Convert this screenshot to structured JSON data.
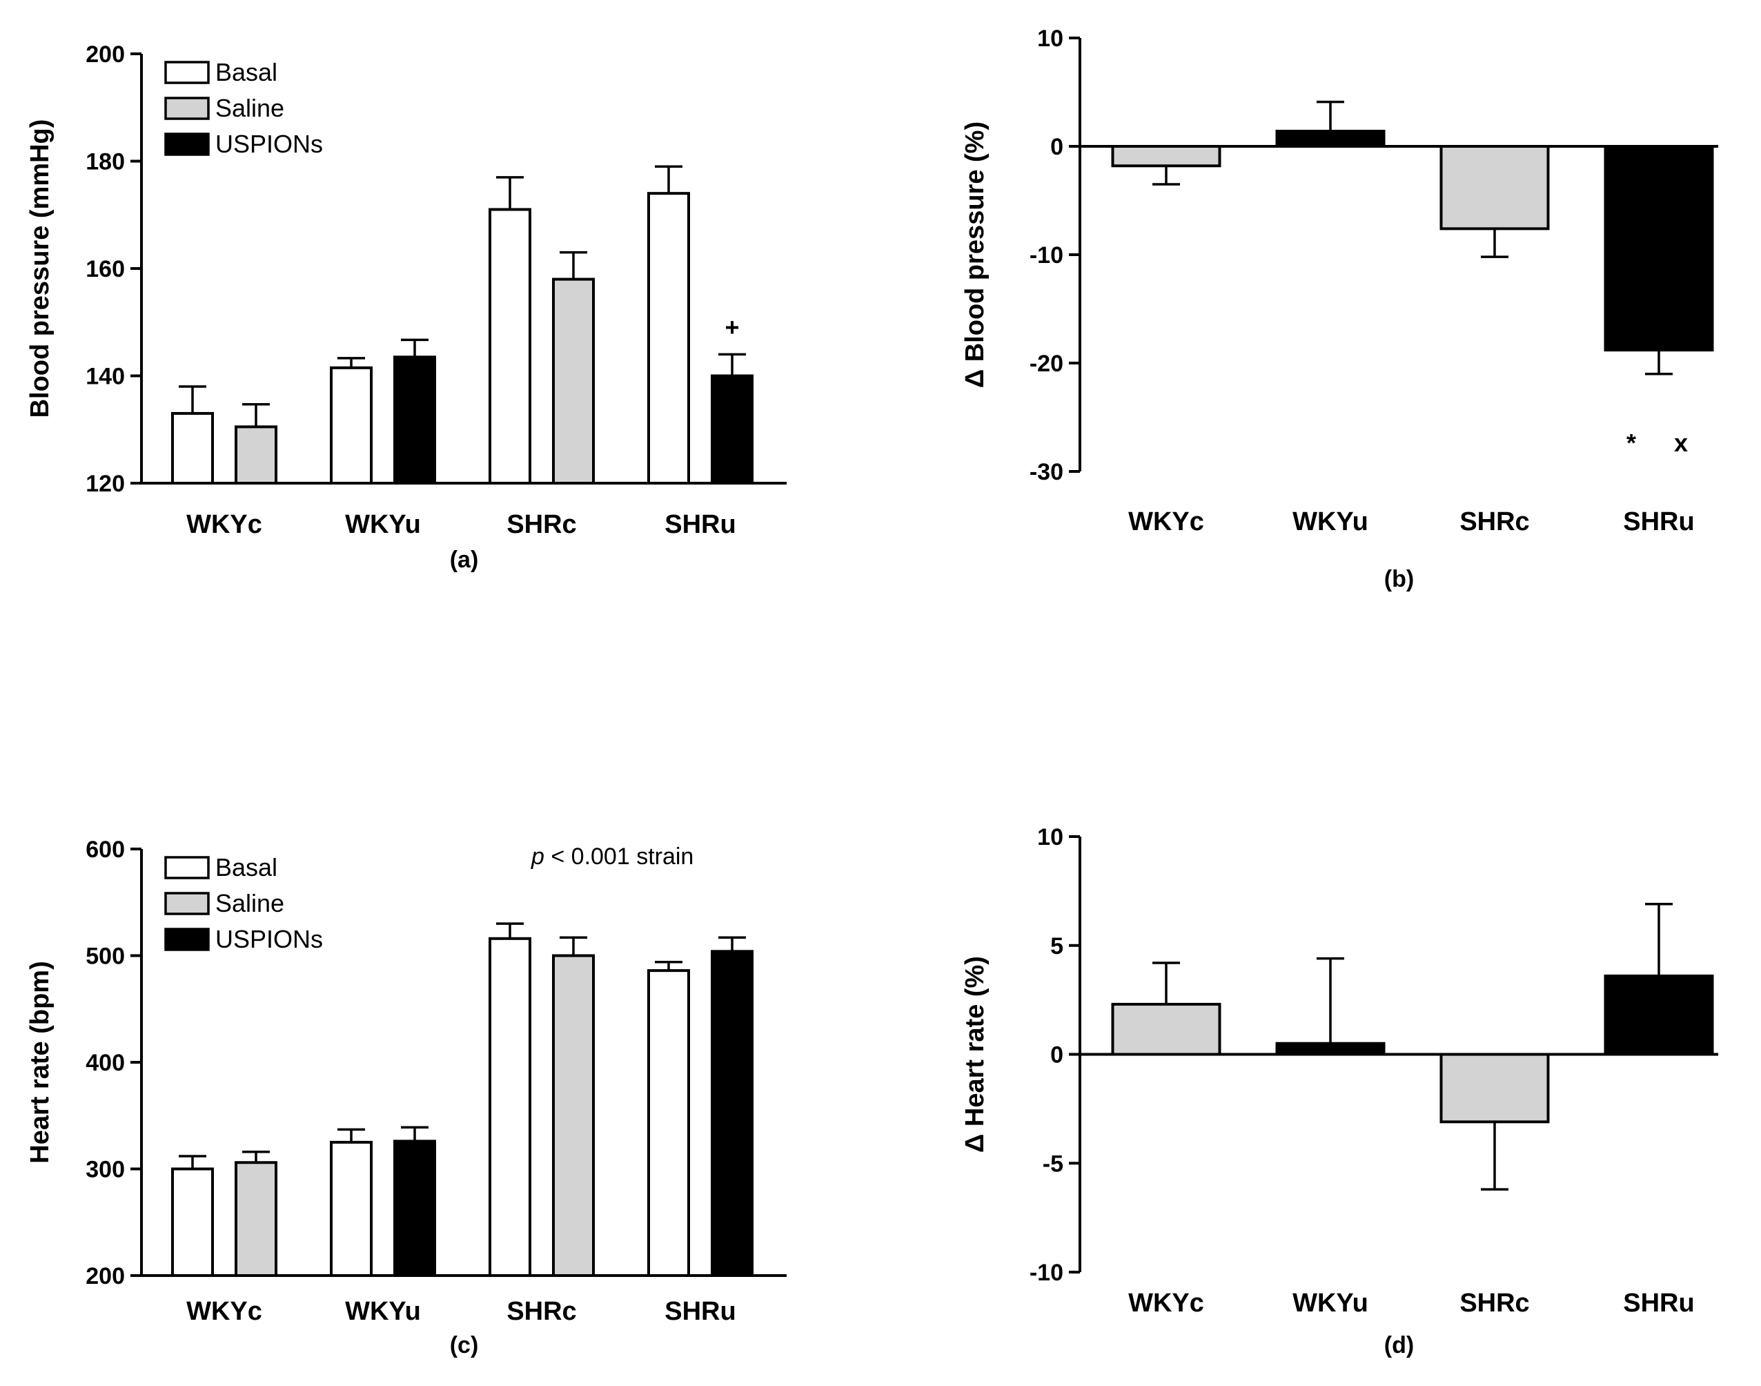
{
  "colors": {
    "basal": "#ffffff",
    "saline": "#d3d3d3",
    "uspions": "#000000",
    "stroke": "#000000"
  },
  "chart_data": [
    {
      "id": "a",
      "type": "bar",
      "panel_label": "(a)",
      "ylabel": "Blood pressure (mmHg)",
      "xlabel": "",
      "ylim": [
        120,
        200
      ],
      "yticks": [
        120,
        140,
        160,
        180,
        200
      ],
      "categories": [
        "WKYc",
        "WKYu",
        "SHRc",
        "SHRu"
      ],
      "legend": [
        "Basal",
        "Saline",
        "USPIONs"
      ],
      "legend_position": "top-left",
      "bars": [
        {
          "group": 0,
          "series": "Basal",
          "value": 133,
          "err": 5
        },
        {
          "group": 0,
          "series": "Saline",
          "value": 130.5,
          "err": 4.2
        },
        {
          "group": 1,
          "series": "Basal",
          "value": 141.5,
          "err": 1.8
        },
        {
          "group": 1,
          "series": "USPIONs",
          "value": 143.5,
          "err": 3.2
        },
        {
          "group": 2,
          "series": "Basal",
          "value": 171,
          "err": 6
        },
        {
          "group": 2,
          "series": "Saline",
          "value": 158,
          "err": 5
        },
        {
          "group": 3,
          "series": "Basal",
          "value": 174,
          "err": 5
        },
        {
          "group": 3,
          "series": "USPIONs",
          "value": 140,
          "err": 4
        }
      ],
      "annotations": [
        {
          "text": "+",
          "group": 3,
          "series": "USPIONs",
          "value": 149
        }
      ]
    },
    {
      "id": "b",
      "type": "bar",
      "panel_label": "(b)",
      "ylabel": "Δ Blood pressure (%)",
      "xlabel": "",
      "ylim": [
        -30,
        10
      ],
      "yticks": [
        -30,
        -20,
        -10,
        0,
        10
      ],
      "categories": [
        "WKYc",
        "WKYu",
        "SHRc",
        "SHRu"
      ],
      "bars": [
        {
          "group": 0,
          "series": "Saline",
          "value": -1.8,
          "err": 1.7
        },
        {
          "group": 1,
          "series": "USPIONs",
          "value": 1.4,
          "err": 2.7
        },
        {
          "group": 2,
          "series": "Saline",
          "value": -7.6,
          "err": 2.6
        },
        {
          "group": 3,
          "series": "USPIONs",
          "value": -18.8,
          "err": 2.2
        }
      ],
      "annotations": [
        {
          "text": "*",
          "group": 3,
          "offset": -0.5,
          "value": -27.4
        },
        {
          "text": "x",
          "group": 3,
          "offset": 0.4,
          "value": -27.4
        }
      ]
    },
    {
      "id": "c",
      "type": "bar",
      "panel_label": "(c)",
      "ylabel": "Heart rate (bpm)",
      "xlabel": "",
      "ylim": [
        200,
        600
      ],
      "yticks": [
        200,
        300,
        400,
        500,
        600
      ],
      "categories": [
        "WKYc",
        "WKYu",
        "SHRc",
        "SHRu"
      ],
      "legend": [
        "Basal",
        "Saline",
        "USPIONs"
      ],
      "legend_position": "top-left",
      "bars": [
        {
          "group": 0,
          "series": "Basal",
          "value": 300,
          "err": 12
        },
        {
          "group": 0,
          "series": "Saline",
          "value": 306,
          "err": 10
        },
        {
          "group": 1,
          "series": "Basal",
          "value": 325,
          "err": 12
        },
        {
          "group": 1,
          "series": "USPIONs",
          "value": 326,
          "err": 13
        },
        {
          "group": 2,
          "series": "Basal",
          "value": 516,
          "err": 14
        },
        {
          "group": 2,
          "series": "Saline",
          "value": 500,
          "err": 17
        },
        {
          "group": 3,
          "series": "Basal",
          "value": 486,
          "err": 8
        },
        {
          "group": 3,
          "series": "USPIONs",
          "value": 504,
          "err": 13
        }
      ],
      "note": {
        "p": "p",
        "rest": " < 0.001  strain"
      }
    },
    {
      "id": "d",
      "type": "bar",
      "panel_label": "(d)",
      "ylabel": "Δ Heart rate (%)",
      "xlabel": "",
      "ylim": [
        -10,
        10
      ],
      "yticks": [
        -10,
        -5,
        0,
        5,
        10
      ],
      "categories": [
        "WKYc",
        "WKYu",
        "SHRc",
        "SHRu"
      ],
      "bars": [
        {
          "group": 0,
          "series": "Saline",
          "value": 2.3,
          "err": 1.9
        },
        {
          "group": 1,
          "series": "USPIONs",
          "value": 0.5,
          "err": 3.9
        },
        {
          "group": 2,
          "series": "Saline",
          "value": -3.1,
          "err": 3.1
        },
        {
          "group": 3,
          "series": "USPIONs",
          "value": 3.6,
          "err": 3.3
        }
      ]
    }
  ]
}
